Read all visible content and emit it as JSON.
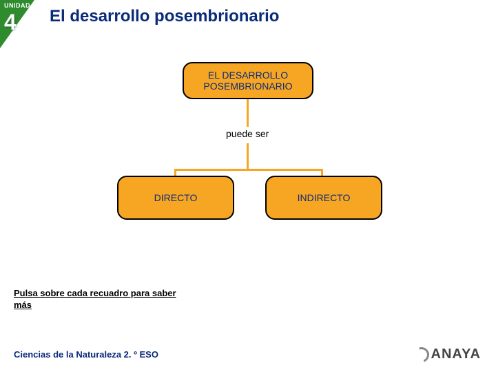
{
  "header": {
    "unit_label": "UNIDAD",
    "unit_number": "4",
    "title": "El desarrollo posembrionario"
  },
  "diagram": {
    "type": "tree",
    "root": {
      "label": "EL DESARROLLO POSEMBRIONARIO"
    },
    "connector_text": "puede ser",
    "children": [
      {
        "label": "DIRECTO"
      },
      {
        "label": "INDIRECTO"
      }
    ],
    "node_fill": "#f6a623",
    "node_border": "#000000",
    "node_text_color": "#0a2a7a",
    "line_color": "#f6a623"
  },
  "instruction": "Pulsa sobre cada recuadro para saber más",
  "footer": "Ciencias de la Naturaleza 2. º ESO",
  "logo": "ANAYA"
}
